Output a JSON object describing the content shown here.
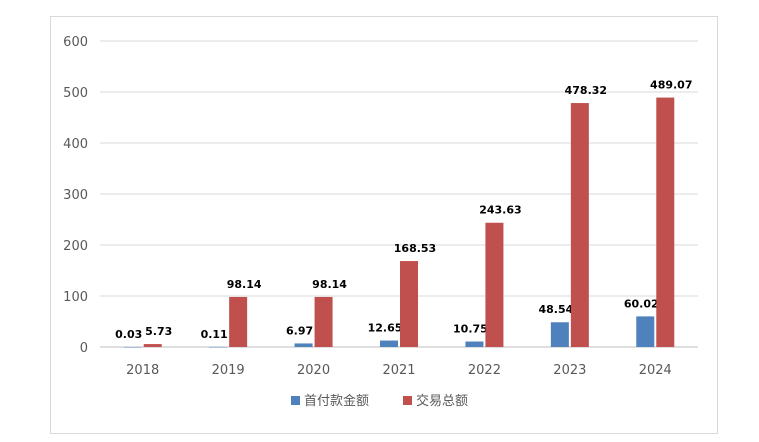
{
  "chart_data": {
    "type": "bar",
    "categories": [
      "2018",
      "2019",
      "2020",
      "2021",
      "2022",
      "2023",
      "2024"
    ],
    "series": [
      {
        "name": "首付款金额",
        "values": [
          0.03,
          0.11,
          6.97,
          12.65,
          10.75,
          48.54,
          60.02
        ],
        "labels": [
          "0.03",
          "0.11",
          "6.97",
          "12.65",
          "10.75",
          "48.54",
          "60.02"
        ],
        "color": "#4f81bd"
      },
      {
        "name": "交易总额",
        "values": [
          5.73,
          98.14,
          98.14,
          168.53,
          243.63,
          478.32,
          489.07
        ],
        "labels": [
          "5.73",
          "98.14",
          "98.14",
          "168.53",
          "243.63",
          "478.32",
          "489.07"
        ],
        "color": "#c0504d"
      }
    ],
    "yticks": [
      "0",
      "100",
      "200",
      "300",
      "400",
      "500",
      "600"
    ],
    "ylim": [
      0,
      600
    ],
    "grid": true,
    "legend_position": "bottom"
  }
}
